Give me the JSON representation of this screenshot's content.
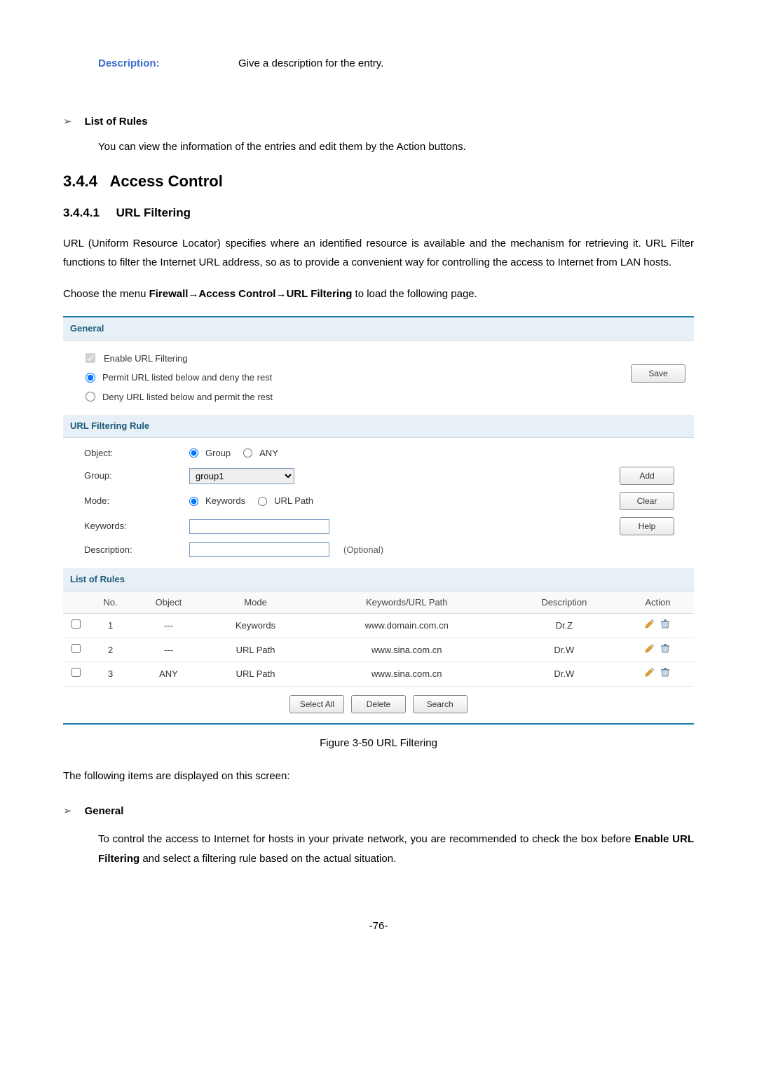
{
  "topDescription": {
    "label": "Description:",
    "text": "Give a description for the entry."
  },
  "listOfRules": {
    "heading": "List of Rules",
    "text": "You can view the information of the entries and edit them by the Action buttons."
  },
  "sectionNumber": "3.4.4",
  "sectionTitle": "Access Control",
  "subsectionNumber": "3.4.4.1",
  "subsectionTitle": "URL Filtering",
  "para1": "URL (Uniform Resource Locator) specifies where an identified resource is available and the mechanism for retrieving it. URL Filter functions to filter the Internet URL address, so as to provide a convenient way for controlling the access to Internet from LAN hosts.",
  "para2_pre": "Choose the menu ",
  "para2_bold": "Firewall→Access Control→URL Filtering",
  "para2_post": " to load the following page.",
  "panel": {
    "generalHeader": "General",
    "enableLabel": "Enable URL Filtering",
    "permitLabel": "Permit URL listed below and deny the rest",
    "denyLabel": "Deny URL listed below and permit the rest",
    "saveLabel": "Save",
    "ruleHeader": "URL Filtering Rule",
    "objectLabel": "Object:",
    "groupOpt": "Group",
    "anyOpt": "ANY",
    "groupLabel": "Group:",
    "groupSelected": "group1",
    "modeLabel": "Mode:",
    "keywordsOpt": "Keywords",
    "urlPathOpt": "URL Path",
    "keywordsLabel": "Keywords:",
    "descriptionLabel": "Description:",
    "optionalText": "(Optional)",
    "addLabel": "Add",
    "clearLabel": "Clear",
    "helpLabel": "Help",
    "listHeader": "List of Rules",
    "cols": {
      "no": "No.",
      "object": "Object",
      "mode": "Mode",
      "kw": "Keywords/URL Path",
      "desc": "Description",
      "action": "Action"
    },
    "rows": [
      {
        "no": "1",
        "object": "---",
        "mode": "Keywords",
        "kw": "www.domain.com.cn",
        "desc": "Dr.Z"
      },
      {
        "no": "2",
        "object": "---",
        "mode": "URL Path",
        "kw": "www.sina.com.cn",
        "desc": "Dr.W"
      },
      {
        "no": "3",
        "object": "ANY",
        "mode": "URL Path",
        "kw": "www.sina.com.cn",
        "desc": "Dr.W"
      }
    ],
    "footer": {
      "selectAll": "Select All",
      "delete": "Delete",
      "search": "Search"
    }
  },
  "figCaption": "Figure 3-50 URL Filtering",
  "afterFigPara": "The following items are displayed on this screen:",
  "generalBullet": "General",
  "generalPara_pre": "To control the access to Internet for hosts in your private network, you are recommended to check the box before ",
  "generalPara_bold": "Enable URL Filtering",
  "generalPara_post": " and select a filtering rule based on the actual situation.",
  "pageNum": "-76-"
}
